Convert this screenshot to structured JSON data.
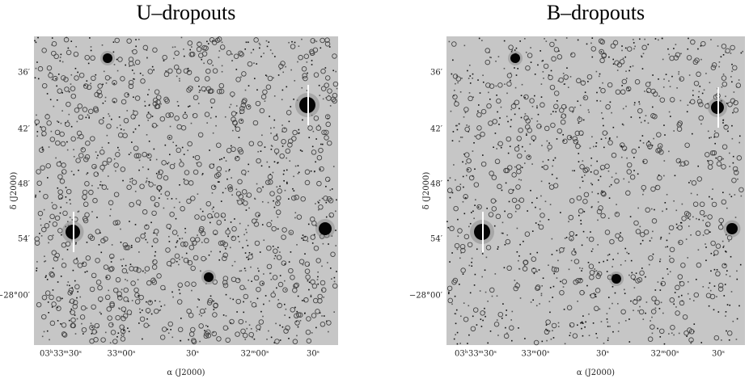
{
  "panels": [
    {
      "title": "U–dropouts",
      "ylabel": "δ (J2000)",
      "xlabel": "α (J2000)",
      "yticks": [
        "36′",
        "42′",
        "48′",
        "54′",
        "−28°00′"
      ],
      "xticks": [
        "03ʰ33ᵐ30ˢ",
        "33ᵐ00ˢ",
        "30ˢ",
        "32ᵐ00ˢ",
        "30ˢ"
      ]
    },
    {
      "title": "B–dropouts",
      "ylabel": "δ (J2000)",
      "xlabel": "α (J2000)",
      "yticks": [
        "36′",
        "42′",
        "48′",
        "54′",
        "−28°00′"
      ],
      "xticks": [
        "03ʰ33ᵐ30ˢ",
        "33ᵐ00ˢ",
        "30ˢ",
        "32ᵐ00ˢ",
        "30ˢ"
      ]
    }
  ]
}
